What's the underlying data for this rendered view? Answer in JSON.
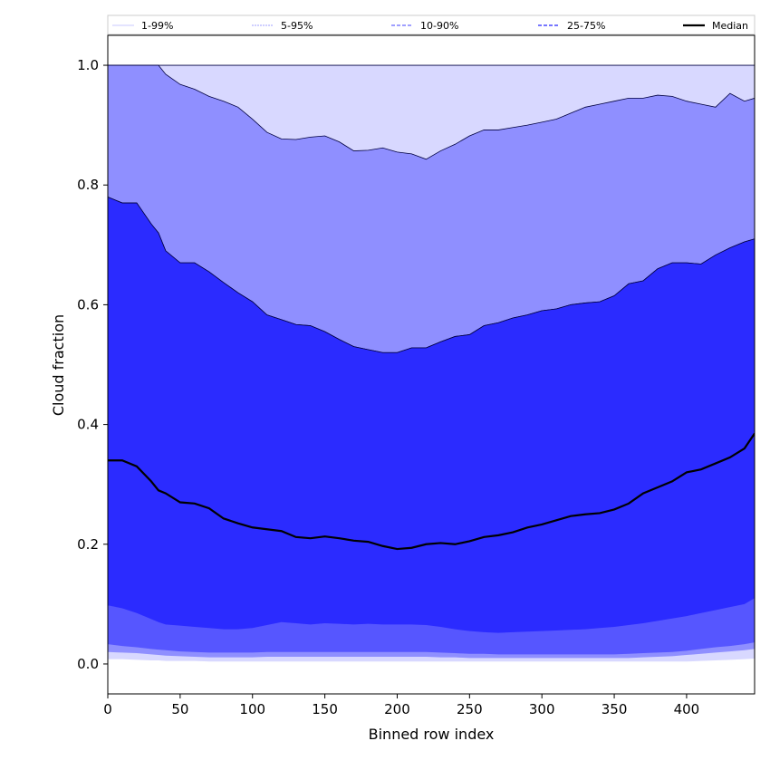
{
  "chart_data": {
    "type": "area",
    "title": "",
    "xlabel": "Binned row index",
    "ylabel": "Cloud fraction",
    "xlim": [
      0,
      447
    ],
    "ylim": [
      -0.05,
      1.05
    ],
    "xticks": [
      0,
      50,
      100,
      150,
      200,
      250,
      300,
      350,
      400
    ],
    "yticks": [
      0.0,
      0.2,
      0.4,
      0.6,
      0.8,
      1.0
    ],
    "ytick_labels": [
      "0.0",
      "0.2",
      "0.4",
      "0.6",
      "0.8",
      "1.0"
    ],
    "legend_position": "top",
    "x": [
      0,
      10,
      20,
      30,
      35,
      40,
      50,
      60,
      70,
      80,
      90,
      100,
      110,
      120,
      130,
      140,
      150,
      160,
      170,
      180,
      190,
      200,
      210,
      220,
      230,
      240,
      250,
      260,
      270,
      280,
      290,
      300,
      310,
      320,
      330,
      340,
      350,
      360,
      370,
      380,
      390,
      400,
      410,
      420,
      430,
      440,
      447
    ],
    "bands": [
      {
        "name": "1-99%",
        "color": "#d8d8ff",
        "lower": [
          0.008,
          0.008,
          0.007,
          0.006,
          0.006,
          0.005,
          0.005,
          0.005,
          0.004,
          0.004,
          0.004,
          0.004,
          0.004,
          0.004,
          0.004,
          0.004,
          0.004,
          0.004,
          0.004,
          0.004,
          0.004,
          0.004,
          0.004,
          0.004,
          0.004,
          0.004,
          0.004,
          0.004,
          0.004,
          0.004,
          0.004,
          0.004,
          0.004,
          0.004,
          0.004,
          0.004,
          0.004,
          0.004,
          0.004,
          0.004,
          0.004,
          0.004,
          0.005,
          0.006,
          0.007,
          0.008,
          0.009
        ],
        "upper": [
          1.0,
          1.0,
          1.0,
          1.0,
          1.0,
          1.0,
          1.0,
          1.0,
          1.0,
          1.0,
          1.0,
          1.0,
          1.0,
          1.0,
          1.0,
          1.0,
          1.0,
          1.0,
          1.0,
          1.0,
          1.0,
          1.0,
          1.0,
          1.0,
          1.0,
          1.0,
          1.0,
          1.0,
          1.0,
          1.0,
          1.0,
          1.0,
          1.0,
          1.0,
          1.0,
          1.0,
          1.0,
          1.0,
          1.0,
          1.0,
          1.0,
          1.0,
          1.0,
          1.0,
          1.0,
          1.0,
          1.0
        ]
      },
      {
        "name": "5-95%",
        "color": "#8f8fff",
        "lower": [
          0.02,
          0.019,
          0.018,
          0.016,
          0.015,
          0.014,
          0.013,
          0.012,
          0.011,
          0.011,
          0.011,
          0.011,
          0.012,
          0.012,
          0.012,
          0.012,
          0.012,
          0.012,
          0.012,
          0.012,
          0.012,
          0.012,
          0.012,
          0.012,
          0.011,
          0.011,
          0.01,
          0.01,
          0.01,
          0.01,
          0.01,
          0.01,
          0.01,
          0.01,
          0.01,
          0.01,
          0.01,
          0.01,
          0.011,
          0.012,
          0.013,
          0.015,
          0.017,
          0.019,
          0.021,
          0.023,
          0.025
        ],
        "upper": [
          1.0,
          1.0,
          1.0,
          1.0,
          1.0,
          0.985,
          0.968,
          0.96,
          0.948,
          0.94,
          0.93,
          0.91,
          0.888,
          0.877,
          0.876,
          0.88,
          0.882,
          0.872,
          0.857,
          0.858,
          0.862,
          0.855,
          0.852,
          0.843,
          0.857,
          0.868,
          0.882,
          0.892,
          0.892,
          0.896,
          0.9,
          0.905,
          0.91,
          0.92,
          0.93,
          0.935,
          0.94,
          0.945,
          0.945,
          0.95,
          0.948,
          0.94,
          0.935,
          0.93,
          0.953,
          0.94,
          0.945
        ]
      },
      {
        "name": "10-90%",
        "color": "#5656ff",
        "lower": [
          0.033,
          0.03,
          0.028,
          0.025,
          0.024,
          0.023,
          0.021,
          0.02,
          0.019,
          0.019,
          0.019,
          0.019,
          0.02,
          0.02,
          0.02,
          0.02,
          0.02,
          0.02,
          0.02,
          0.02,
          0.02,
          0.02,
          0.02,
          0.02,
          0.019,
          0.018,
          0.017,
          0.017,
          0.016,
          0.016,
          0.016,
          0.016,
          0.016,
          0.016,
          0.016,
          0.016,
          0.016,
          0.017,
          0.018,
          0.019,
          0.02,
          0.022,
          0.025,
          0.028,
          0.03,
          0.033,
          0.036
        ],
        "upper": [
          0.78,
          0.77,
          0.77,
          0.735,
          0.72,
          0.69,
          0.67,
          0.67,
          0.655,
          0.637,
          0.62,
          0.605,
          0.583,
          0.575,
          0.567,
          0.565,
          0.555,
          0.542,
          0.53,
          0.525,
          0.52,
          0.52,
          0.528,
          0.528,
          0.538,
          0.547,
          0.55,
          0.565,
          0.57,
          0.578,
          0.583,
          0.59,
          0.593,
          0.6,
          0.603,
          0.605,
          0.615,
          0.635,
          0.64,
          0.66,
          0.67,
          0.67,
          0.668,
          0.683,
          0.695,
          0.705,
          0.71
        ]
      },
      {
        "name": "25-75%",
        "color": "#2b2bff",
        "lower": [
          0.098,
          0.093,
          0.085,
          0.075,
          0.07,
          0.066,
          0.064,
          0.062,
          0.06,
          0.058,
          0.058,
          0.06,
          0.065,
          0.07,
          0.068,
          0.066,
          0.068,
          0.067,
          0.066,
          0.067,
          0.066,
          0.066,
          0.066,
          0.065,
          0.062,
          0.058,
          0.055,
          0.053,
          0.052,
          0.053,
          0.054,
          0.055,
          0.056,
          0.057,
          0.058,
          0.06,
          0.062,
          0.065,
          0.068,
          0.072,
          0.076,
          0.08,
          0.085,
          0.09,
          0.095,
          0.1,
          0.11
        ],
        "upper": [
          0.78,
          0.77,
          0.77,
          0.735,
          0.72,
          0.69,
          0.67,
          0.67,
          0.655,
          0.637,
          0.62,
          0.605,
          0.583,
          0.575,
          0.567,
          0.565,
          0.555,
          0.542,
          0.53,
          0.525,
          0.52,
          0.52,
          0.528,
          0.528,
          0.538,
          0.547,
          0.55,
          0.565,
          0.57,
          0.578,
          0.583,
          0.59,
          0.593,
          0.6,
          0.603,
          0.605,
          0.615,
          0.635,
          0.64,
          0.66,
          0.67,
          0.67,
          0.668,
          0.683,
          0.695,
          0.705,
          0.71
        ]
      }
    ],
    "median": {
      "name": "Median",
      "color": "#000000",
      "values": [
        0.34,
        0.34,
        0.33,
        0.305,
        0.29,
        0.285,
        0.27,
        0.268,
        0.26,
        0.243,
        0.235,
        0.228,
        0.225,
        0.222,
        0.212,
        0.21,
        0.213,
        0.21,
        0.206,
        0.204,
        0.197,
        0.192,
        0.194,
        0.2,
        0.202,
        0.2,
        0.205,
        0.212,
        0.215,
        0.22,
        0.228,
        0.233,
        0.24,
        0.247,
        0.25,
        0.252,
        0.258,
        0.268,
        0.285,
        0.295,
        0.305,
        0.32,
        0.325,
        0.335,
        0.345,
        0.36,
        0.385
      ]
    },
    "legend": [
      {
        "label": "1-99%",
        "style": "thin-light",
        "color": "#c9c9ff"
      },
      {
        "label": "5-95%",
        "style": "thin-dashed",
        "color": "#9f9fff"
      },
      {
        "label": "10-90%",
        "style": "dashed",
        "color": "#8080ff"
      },
      {
        "label": "25-75%",
        "style": "dashed",
        "color": "#4a4aff"
      },
      {
        "label": "Median",
        "style": "solid",
        "color": "#000000"
      }
    ]
  }
}
